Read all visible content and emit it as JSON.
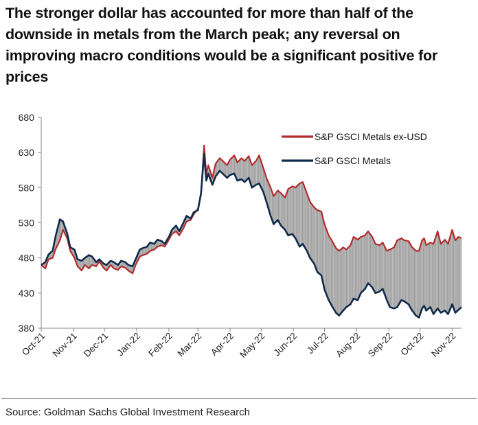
{
  "title": "The stronger dollar has accounted for more than half of the downside in metals from the March peak; any reversal on improving macro conditions would be a significant positive for prices",
  "source": "Source: Goldman Sachs Global Investment Research",
  "colors": {
    "metals_ex_usd": "#b22a2a",
    "metals": "#0f2a4a",
    "spread_fill": "#9a9a9a",
    "axis": "#888888"
  },
  "chart_data": {
    "type": "line",
    "x_start": "2021-10-01",
    "x_end": "2022-11-10",
    "x_tick_labels": [
      "Oct-21",
      "Nov-21",
      "Dec-21",
      "Jan-22",
      "Feb-22",
      "Mar-22",
      "Apr-22",
      "May-22",
      "Jun-22",
      "Jul-22",
      "Aug-22",
      "Sep-22",
      "Oct-22",
      "Nov-22"
    ],
    "x_tick_dates": [
      "2021-10-01",
      "2021-11-01",
      "2021-12-01",
      "2022-01-01",
      "2022-02-01",
      "2022-03-01",
      "2022-04-01",
      "2022-05-01",
      "2022-06-01",
      "2022-07-01",
      "2022-08-01",
      "2022-09-01",
      "2022-10-01",
      "2022-11-01"
    ],
    "ylim": [
      380,
      680
    ],
    "y_ticks": [
      380,
      430,
      480,
      530,
      580,
      630,
      680
    ],
    "legend_position": "top-right",
    "grid": false,
    "shaded_area_between_series": true,
    "series": [
      {
        "name": "S&P GSCI Metals ex-USD",
        "color": "#b22a2a",
        "points": [
          [
            "2021-10-01",
            470
          ],
          [
            "2021-10-05",
            465
          ],
          [
            "2021-10-08",
            478
          ],
          [
            "2021-10-12",
            480
          ],
          [
            "2021-10-15",
            493
          ],
          [
            "2021-10-19",
            505
          ],
          [
            "2021-10-22",
            520
          ],
          [
            "2021-10-26",
            508
          ],
          [
            "2021-10-29",
            490
          ],
          [
            "2021-11-02",
            480
          ],
          [
            "2021-11-05",
            468
          ],
          [
            "2021-11-09",
            462
          ],
          [
            "2021-11-12",
            470
          ],
          [
            "2021-11-16",
            465
          ],
          [
            "2021-11-19",
            470
          ],
          [
            "2021-11-23",
            468
          ],
          [
            "2021-11-26",
            475
          ],
          [
            "2021-11-30",
            466
          ],
          [
            "2021-12-03",
            462
          ],
          [
            "2021-12-07",
            470
          ],
          [
            "2021-12-10",
            465
          ],
          [
            "2021-12-14",
            463
          ],
          [
            "2021-12-17",
            468
          ],
          [
            "2021-12-21",
            466
          ],
          [
            "2021-12-24",
            462
          ],
          [
            "2021-12-28",
            458
          ],
          [
            "2021-12-31",
            470
          ],
          [
            "2022-01-04",
            482
          ],
          [
            "2022-01-07",
            484
          ],
          [
            "2022-01-11",
            486
          ],
          [
            "2022-01-14",
            490
          ],
          [
            "2022-01-18",
            492
          ],
          [
            "2022-01-21",
            496
          ],
          [
            "2022-01-25",
            498
          ],
          [
            "2022-01-28",
            496
          ],
          [
            "2022-02-01",
            506
          ],
          [
            "2022-02-04",
            514
          ],
          [
            "2022-02-08",
            518
          ],
          [
            "2022-02-11",
            512
          ],
          [
            "2022-02-15",
            522
          ],
          [
            "2022-02-18",
            532
          ],
          [
            "2022-02-22",
            534
          ],
          [
            "2022-02-25",
            542
          ],
          [
            "2022-03-01",
            550
          ],
          [
            "2022-03-04",
            570
          ],
          [
            "2022-03-07",
            640
          ],
          [
            "2022-03-09",
            600
          ],
          [
            "2022-03-11",
            612
          ],
          [
            "2022-03-15",
            594
          ],
          [
            "2022-03-18",
            614
          ],
          [
            "2022-03-22",
            622
          ],
          [
            "2022-03-25",
            618
          ],
          [
            "2022-03-29",
            612
          ],
          [
            "2022-04-01",
            620
          ],
          [
            "2022-04-05",
            626
          ],
          [
            "2022-04-08",
            616
          ],
          [
            "2022-04-12",
            622
          ],
          [
            "2022-04-15",
            618
          ],
          [
            "2022-04-19",
            625
          ],
          [
            "2022-04-22",
            612
          ],
          [
            "2022-04-26",
            618
          ],
          [
            "2022-04-29",
            626
          ],
          [
            "2022-05-03",
            608
          ],
          [
            "2022-05-06",
            594
          ],
          [
            "2022-05-10",
            580
          ],
          [
            "2022-05-13",
            568
          ],
          [
            "2022-05-17",
            576
          ],
          [
            "2022-05-20",
            572
          ],
          [
            "2022-05-24",
            566
          ],
          [
            "2022-05-27",
            578
          ],
          [
            "2022-05-31",
            582
          ],
          [
            "2022-06-03",
            580
          ],
          [
            "2022-06-07",
            586
          ],
          [
            "2022-06-10",
            588
          ],
          [
            "2022-06-14",
            572
          ],
          [
            "2022-06-17",
            560
          ],
          [
            "2022-06-21",
            552
          ],
          [
            "2022-06-24",
            548
          ],
          [
            "2022-06-28",
            546
          ],
          [
            "2022-07-01",
            528
          ],
          [
            "2022-07-05",
            512
          ],
          [
            "2022-07-08",
            505
          ],
          [
            "2022-07-12",
            494
          ],
          [
            "2022-07-15",
            490
          ],
          [
            "2022-07-19",
            495
          ],
          [
            "2022-07-22",
            492
          ],
          [
            "2022-07-26",
            498
          ],
          [
            "2022-07-29",
            510
          ],
          [
            "2022-08-02",
            506
          ],
          [
            "2022-08-05",
            510
          ],
          [
            "2022-08-09",
            512
          ],
          [
            "2022-08-12",
            518
          ],
          [
            "2022-08-16",
            510
          ],
          [
            "2022-08-19",
            500
          ],
          [
            "2022-08-23",
            498
          ],
          [
            "2022-08-26",
            502
          ],
          [
            "2022-08-30",
            490
          ],
          [
            "2022-09-02",
            492
          ],
          [
            "2022-09-06",
            495
          ],
          [
            "2022-09-09",
            505
          ],
          [
            "2022-09-13",
            508
          ],
          [
            "2022-09-16",
            505
          ],
          [
            "2022-09-20",
            504
          ],
          [
            "2022-09-23",
            496
          ],
          [
            "2022-09-27",
            490
          ],
          [
            "2022-09-30",
            490
          ],
          [
            "2022-10-03",
            505
          ],
          [
            "2022-10-05",
            508
          ],
          [
            "2022-10-07",
            498
          ],
          [
            "2022-10-11",
            502
          ],
          [
            "2022-10-14",
            500
          ],
          [
            "2022-10-18",
            518
          ],
          [
            "2022-10-21",
            500
          ],
          [
            "2022-10-25",
            506
          ],
          [
            "2022-10-28",
            500
          ],
          [
            "2022-11-01",
            520
          ],
          [
            "2022-11-04",
            505
          ],
          [
            "2022-11-07",
            510
          ],
          [
            "2022-11-10",
            508
          ]
        ]
      },
      {
        "name": "S&P GSCI Metals",
        "color": "#0f2a4a",
        "points": [
          [
            "2021-10-01",
            470
          ],
          [
            "2021-10-05",
            474
          ],
          [
            "2021-10-08",
            485
          ],
          [
            "2021-10-12",
            490
          ],
          [
            "2021-10-15",
            512
          ],
          [
            "2021-10-19",
            535
          ],
          [
            "2021-10-22",
            532
          ],
          [
            "2021-10-26",
            515
          ],
          [
            "2021-10-29",
            495
          ],
          [
            "2021-11-02",
            492
          ],
          [
            "2021-11-05",
            478
          ],
          [
            "2021-11-09",
            476
          ],
          [
            "2021-11-12",
            480
          ],
          [
            "2021-11-16",
            484
          ],
          [
            "2021-11-19",
            482
          ],
          [
            "2021-11-23",
            474
          ],
          [
            "2021-11-26",
            478
          ],
          [
            "2021-11-30",
            472
          ],
          [
            "2021-12-03",
            470
          ],
          [
            "2021-12-07",
            476
          ],
          [
            "2021-12-10",
            474
          ],
          [
            "2021-12-14",
            470
          ],
          [
            "2021-12-17",
            476
          ],
          [
            "2021-12-21",
            474
          ],
          [
            "2021-12-24",
            470
          ],
          [
            "2021-12-28",
            468
          ],
          [
            "2021-12-31",
            478
          ],
          [
            "2022-01-04",
            492
          ],
          [
            "2022-01-07",
            494
          ],
          [
            "2022-01-11",
            496
          ],
          [
            "2022-01-14",
            502
          ],
          [
            "2022-01-18",
            500
          ],
          [
            "2022-01-21",
            506
          ],
          [
            "2022-01-25",
            504
          ],
          [
            "2022-01-28",
            500
          ],
          [
            "2022-02-01",
            510
          ],
          [
            "2022-02-04",
            520
          ],
          [
            "2022-02-08",
            526
          ],
          [
            "2022-02-11",
            518
          ],
          [
            "2022-02-15",
            530
          ],
          [
            "2022-02-18",
            540
          ],
          [
            "2022-02-22",
            536
          ],
          [
            "2022-02-25",
            545
          ],
          [
            "2022-03-01",
            548
          ],
          [
            "2022-03-04",
            572
          ],
          [
            "2022-03-07",
            628
          ],
          [
            "2022-03-09",
            590
          ],
          [
            "2022-03-11",
            600
          ],
          [
            "2022-03-15",
            584
          ],
          [
            "2022-03-18",
            596
          ],
          [
            "2022-03-22",
            604
          ],
          [
            "2022-03-25",
            600
          ],
          [
            "2022-03-29",
            594
          ],
          [
            "2022-04-01",
            598
          ],
          [
            "2022-04-05",
            600
          ],
          [
            "2022-04-08",
            590
          ],
          [
            "2022-04-12",
            592
          ],
          [
            "2022-04-15",
            588
          ],
          [
            "2022-04-19",
            594
          ],
          [
            "2022-04-22",
            580
          ],
          [
            "2022-04-26",
            584
          ],
          [
            "2022-04-29",
            586
          ],
          [
            "2022-05-03",
            574
          ],
          [
            "2022-05-06",
            560
          ],
          [
            "2022-05-10",
            540
          ],
          [
            "2022-05-13",
            528
          ],
          [
            "2022-05-17",
            534
          ],
          [
            "2022-05-20",
            526
          ],
          [
            "2022-05-24",
            520
          ],
          [
            "2022-05-27",
            512
          ],
          [
            "2022-05-31",
            514
          ],
          [
            "2022-06-03",
            508
          ],
          [
            "2022-06-07",
            496
          ],
          [
            "2022-06-10",
            500
          ],
          [
            "2022-06-14",
            490
          ],
          [
            "2022-06-17",
            480
          ],
          [
            "2022-06-21",
            472
          ],
          [
            "2022-06-24",
            460
          ],
          [
            "2022-06-28",
            455
          ],
          [
            "2022-07-01",
            435
          ],
          [
            "2022-07-05",
            420
          ],
          [
            "2022-07-08",
            412
          ],
          [
            "2022-07-12",
            402
          ],
          [
            "2022-07-15",
            398
          ],
          [
            "2022-07-19",
            405
          ],
          [
            "2022-07-22",
            410
          ],
          [
            "2022-07-26",
            414
          ],
          [
            "2022-07-29",
            422
          ],
          [
            "2022-08-02",
            420
          ],
          [
            "2022-08-05",
            430
          ],
          [
            "2022-08-09",
            436
          ],
          [
            "2022-08-12",
            444
          ],
          [
            "2022-08-16",
            438
          ],
          [
            "2022-08-19",
            430
          ],
          [
            "2022-08-23",
            432
          ],
          [
            "2022-08-26",
            436
          ],
          [
            "2022-08-30",
            420
          ],
          [
            "2022-09-02",
            410
          ],
          [
            "2022-09-06",
            408
          ],
          [
            "2022-09-09",
            410
          ],
          [
            "2022-09-13",
            420
          ],
          [
            "2022-09-16",
            418
          ],
          [
            "2022-09-20",
            414
          ],
          [
            "2022-09-23",
            406
          ],
          [
            "2022-09-27",
            398
          ],
          [
            "2022-09-30",
            395
          ],
          [
            "2022-10-03",
            408
          ],
          [
            "2022-10-05",
            412
          ],
          [
            "2022-10-07",
            405
          ],
          [
            "2022-10-11",
            410
          ],
          [
            "2022-10-14",
            400
          ],
          [
            "2022-10-18",
            408
          ],
          [
            "2022-10-21",
            402
          ],
          [
            "2022-10-25",
            405
          ],
          [
            "2022-10-28",
            400
          ],
          [
            "2022-11-01",
            414
          ],
          [
            "2022-11-04",
            402
          ],
          [
            "2022-11-07",
            406
          ],
          [
            "2022-11-10",
            410
          ]
        ]
      }
    ]
  }
}
